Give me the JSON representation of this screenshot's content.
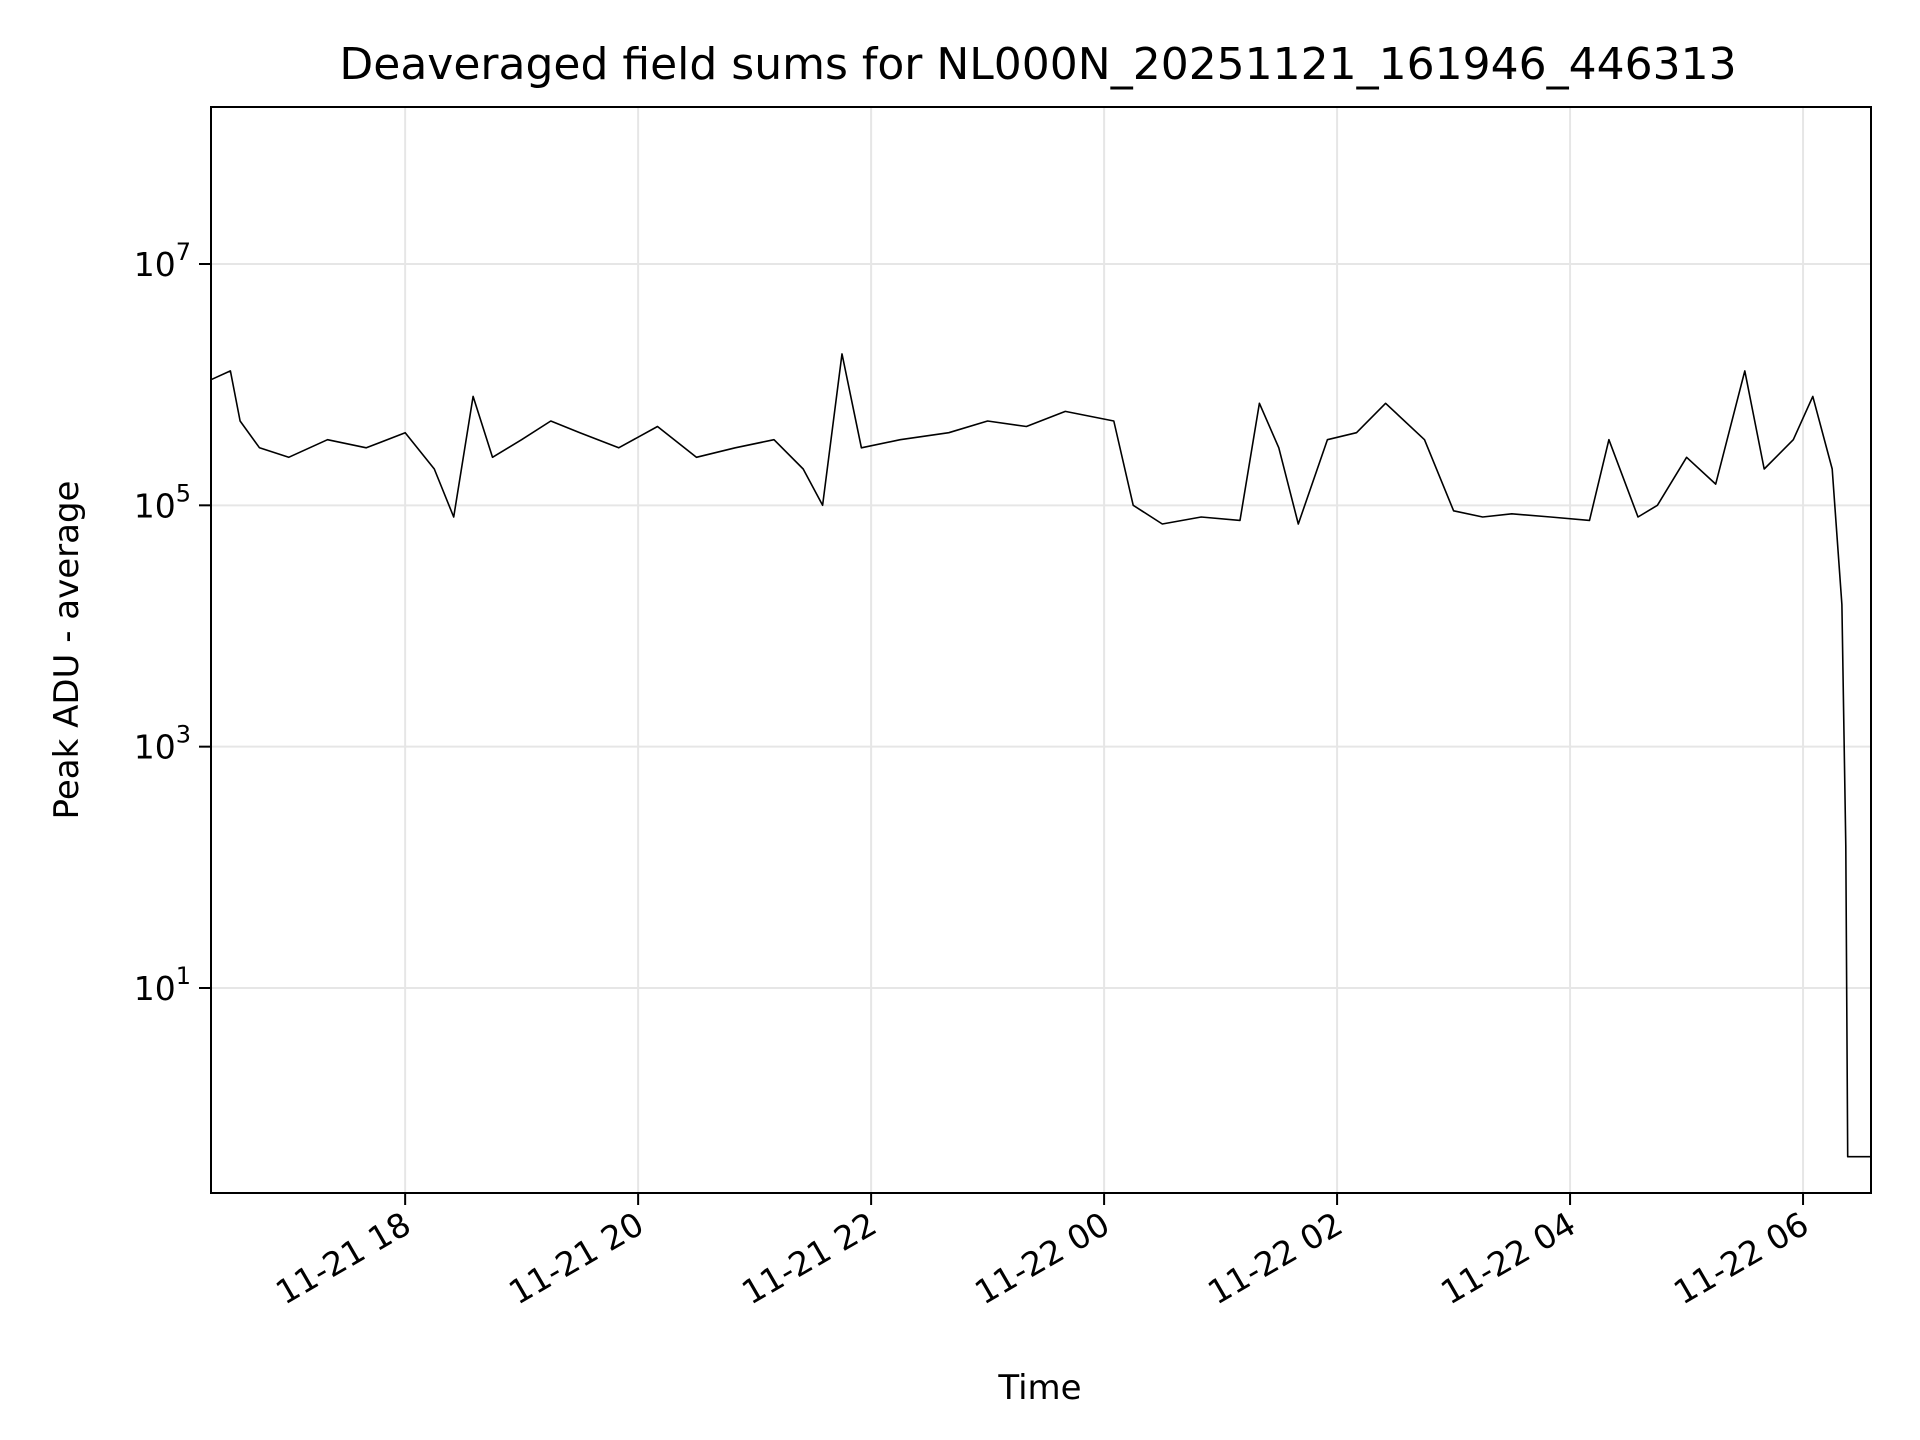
{
  "chart_data": {
    "type": "line",
    "title": "Deaveraged field sums for NL000N_20251121_161946_446313",
    "xlabel": "Time",
    "ylabel": "Peak ADU - average",
    "yscale": "log",
    "grid": true,
    "legend": "none",
    "line_color": "#000000",
    "xlim": [
      "2025-11-21 16:20",
      "2025-11-22 06:35"
    ],
    "ylim": [
      0.2,
      200000000.0
    ],
    "x_ticks": [
      {
        "value": "2025-11-21 18:00",
        "label": "11-21 18"
      },
      {
        "value": "2025-11-21 20:00",
        "label": "11-21 20"
      },
      {
        "value": "2025-11-21 22:00",
        "label": "11-21 22"
      },
      {
        "value": "2025-11-22 00:00",
        "label": "11-22 00"
      },
      {
        "value": "2025-11-22 02:00",
        "label": "11-22 02"
      },
      {
        "value": "2025-11-22 04:00",
        "label": "11-22 04"
      },
      {
        "value": "2025-11-22 06:00",
        "label": "11-22 06"
      }
    ],
    "y_ticks": [
      {
        "value": 10,
        "base": "10",
        "exp": "1"
      },
      {
        "value": 1000,
        "base": "10",
        "exp": "3"
      },
      {
        "value": 100000,
        "base": "10",
        "exp": "5"
      },
      {
        "value": 10000000,
        "base": "10",
        "exp": "7"
      }
    ],
    "series": [
      {
        "x": [
          "2025-11-21 16:20",
          "2025-11-21 16:30",
          "2025-11-21 16:35",
          "2025-11-21 16:45",
          "2025-11-21 17:00",
          "2025-11-21 17:20",
          "2025-11-21 17:40",
          "2025-11-21 18:00",
          "2025-11-21 18:15",
          "2025-11-21 18:25",
          "2025-11-21 18:35",
          "2025-11-21 18:45",
          "2025-11-21 19:00",
          "2025-11-21 19:15",
          "2025-11-21 19:30",
          "2025-11-21 19:50",
          "2025-11-21 20:10",
          "2025-11-21 20:30",
          "2025-11-21 20:50",
          "2025-11-21 21:10",
          "2025-11-21 21:25",
          "2025-11-21 21:35",
          "2025-11-21 21:45",
          "2025-11-21 21:55",
          "2025-11-21 22:15",
          "2025-11-21 22:40",
          "2025-11-21 23:00",
          "2025-11-21 23:20",
          "2025-11-21 23:40",
          "2025-11-22 00:05",
          "2025-11-22 00:15",
          "2025-11-22 00:30",
          "2025-11-22 00:50",
          "2025-11-22 01:10",
          "2025-11-22 01:20",
          "2025-11-22 01:30",
          "2025-11-22 01:40",
          "2025-11-22 01:55",
          "2025-11-22 02:10",
          "2025-11-22 02:25",
          "2025-11-22 02:45",
          "2025-11-22 03:00",
          "2025-11-22 03:15",
          "2025-11-22 03:30",
          "2025-11-22 03:50",
          "2025-11-22 04:10",
          "2025-11-22 04:20",
          "2025-11-22 04:35",
          "2025-11-22 04:45",
          "2025-11-22 05:00",
          "2025-11-22 05:15",
          "2025-11-22 05:30",
          "2025-11-22 05:40",
          "2025-11-22 05:55",
          "2025-11-22 06:05",
          "2025-11-22 06:15",
          "2025-11-22 06:20",
          "2025-11-22 06:22",
          "2025-11-22 06:23",
          "2025-11-22 06:24",
          "2025-11-22 06:25",
          "2025-11-22 06:35"
        ],
        "y": [
          1100000,
          1300000,
          500000,
          300000,
          250000,
          350000,
          300000,
          400000,
          200000,
          80000,
          800000,
          250000,
          350000,
          500000,
          400000,
          300000,
          450000,
          250000,
          300000,
          350000,
          200000,
          100000,
          1800000,
          300000,
          350000,
          400000,
          500000,
          450000,
          600000,
          500000,
          100000,
          70000,
          80000,
          75000,
          700000,
          300000,
          70000,
          350000,
          400000,
          700000,
          350000,
          90000,
          80000,
          85000,
          80000,
          75000,
          350000,
          80000,
          100000,
          250000,
          150000,
          1300000,
          200000,
          350000,
          800000,
          200000,
          15000,
          150,
          0.4,
          0.4,
          0.4,
          0.4
        ]
      }
    ]
  }
}
